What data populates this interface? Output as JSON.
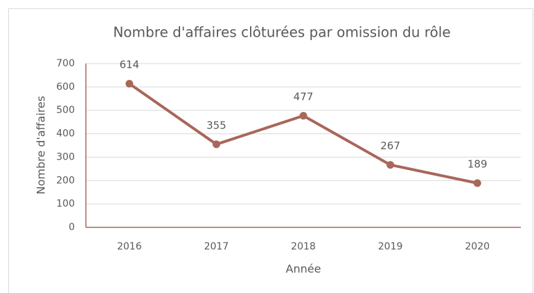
{
  "chart_data": {
    "type": "line",
    "title": "Nombre d'affaires clôturées par omission du rôle",
    "x_label": "Année",
    "y_label": "Nombre d'affaires",
    "categories": [
      "2016",
      "2017",
      "2018",
      "2019",
      "2020"
    ],
    "values": [
      614,
      355,
      477,
      267,
      189
    ],
    "color": "#a9665a",
    "ylim": [
      0,
      700
    ],
    "yticks": [
      0,
      100,
      200,
      300,
      400,
      500,
      600,
      700
    ],
    "grid": true,
    "data_labels": true
  }
}
